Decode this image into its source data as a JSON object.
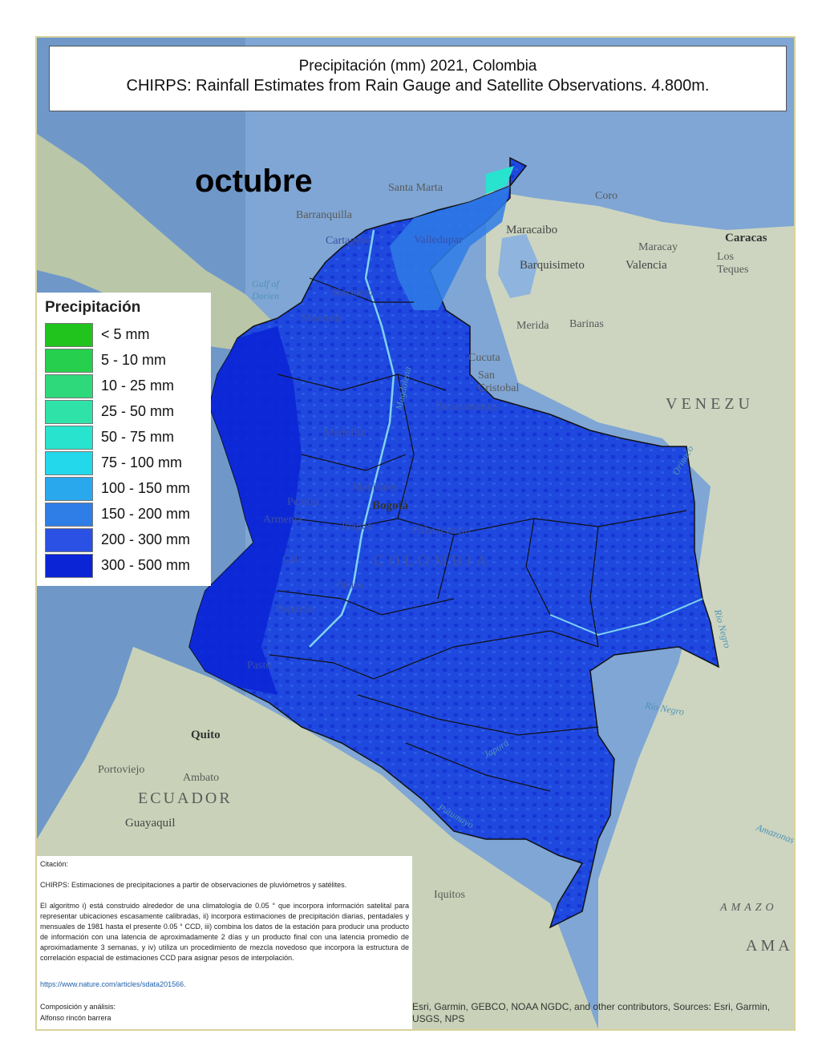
{
  "title": {
    "line1": "Precipitación (mm)  2021, Colombia",
    "line2": "CHIRPS: Rainfall Estimates from Rain Gauge and Satellite Observations.  4.800m."
  },
  "month": "octubre",
  "legend": {
    "title": "Precipitación",
    "items": [
      {
        "label": "< 5 mm",
        "color": "#21c31d"
      },
      {
        "label": "5 - 10 mm",
        "color": "#26d04e"
      },
      {
        "label": "10 - 25 mm",
        "color": "#2ed97b"
      },
      {
        "label": "25 - 50 mm",
        "color": "#2ee2a8"
      },
      {
        "label": "50 - 75 mm",
        "color": "#28e4cf"
      },
      {
        "label": "75 - 100 mm",
        "color": "#22d8ea"
      },
      {
        "label": "100 - 150 mm",
        "color": "#2aa8ee"
      },
      {
        "label": "150 - 200 mm",
        "color": "#2f7de6"
      },
      {
        "label": "200 - 300 mm",
        "color": "#2a50e4"
      },
      {
        "label": "300 - 500 mm",
        "color": "#0a24d6"
      }
    ]
  },
  "places": {
    "santa_marta": "Santa Marta",
    "barranquilla": "Barranquilla",
    "cartagena": "Cartagena",
    "valledupar": "Valledupar",
    "monteria": "Montería",
    "sincelejo": "Sincelejo",
    "coro": "Coro",
    "maracaibo": "Maracaibo",
    "barquisimeto": "Barquisimeto",
    "maracay": "Maracay",
    "valencia": "Valencia",
    "caracas": "Caracas",
    "los_teques": "Los Teques",
    "merida": "Merida",
    "barinas": "Barinas",
    "cucuta": "Cucuta",
    "san_cristobal": "San Cristobal",
    "bucaramanga": "Bucaramanga",
    "medellin": "Medellín",
    "manizales": "Manizales",
    "pereira": "Pereira",
    "armenia": "Armenia",
    "ibague": "Ibagué",
    "bogota": "Bogotá",
    "villavicencio": "Villavicencio",
    "cali": "Cali",
    "neiva": "Neiva",
    "popayan": "Popayán",
    "pasto": "Pasto",
    "quito": "Quito",
    "portoviejo": "Portoviejo",
    "ambato": "Ambato",
    "guayaquil": "Guayaquil",
    "iquitos": "Iquitos",
    "colombia": "COLOMBIA",
    "venezuela": "VENEZU",
    "ecuador": "ECUADOR",
    "amazonas1": "AMAZO",
    "amazonas2": "AMA"
  },
  "water": {
    "gulf": "Gulf of Darien",
    "magdalena": "Magdalena",
    "orinoco": "Orinoco",
    "rio_negro": "Rio Negro",
    "rio_negro2": "Río Negro",
    "japura": "Japurá",
    "putumayo": "Putumayo",
    "amazonas": "Amazonas"
  },
  "citation": {
    "heading": "Citación:",
    "line1": "CHIRPS: Estimaciones de precipitaciones a partir de observaciones de pluviómetros y satélites.",
    "body": "El algoritmo i) está construido alrededor de una climatología de 0.05 ° que incorpora información satelital para representar ubicaciones escasamente calibradas, ii) incorpora estimaciones de precipitación diarias, pentadales y mensuales de 1981 hasta el presente 0.05 ° CCD, iii) combina los datos de la estación para producir una producto de información con una latencia de aproximadamente 2 días y un producto final con una latencia promedio de aproximadamente 3 semanas, y iv) utiliza un procedimiento de mezcla novedoso que incorpora la estructura de correlación espacial de estimaciones CCD para asignar pesos de interpolación.",
    "url": "https://www.nature.com/articles/sdata201566.",
    "composition": "Composición y análisis:",
    "author": "Alfonso rincón barrera"
  },
  "attribution": "Esri, Garmin, GEBCO, NOAA NGDC, and other contributors, Sources: Esri, Garmin, USGS, NPS"
}
